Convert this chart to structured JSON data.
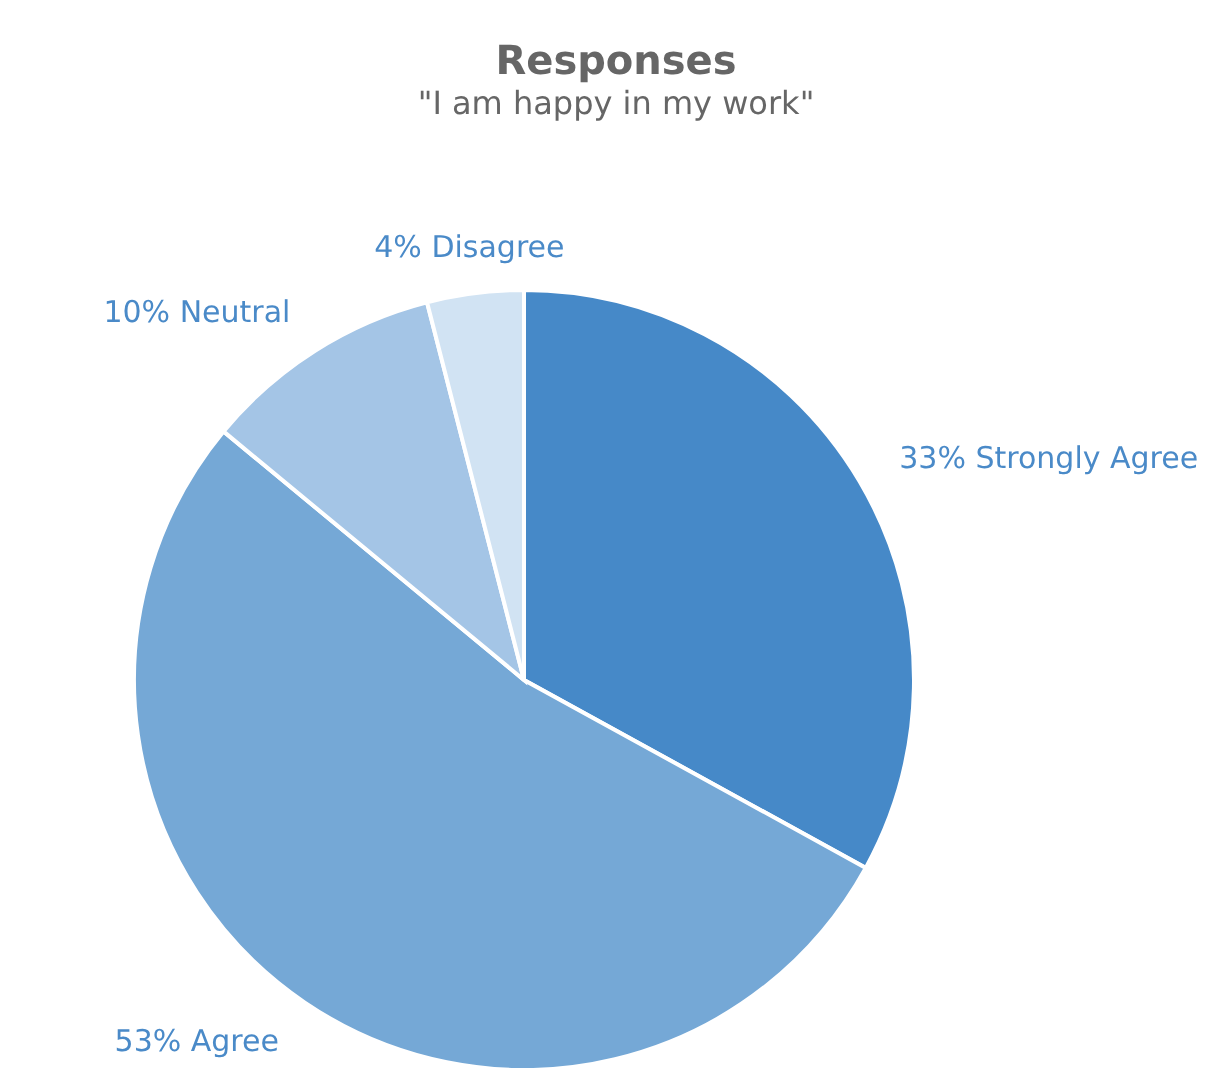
{
  "chart_data": {
    "type": "pie",
    "title": "Responses",
    "subtitle": "\"I am happy in my work\"",
    "categories": [
      "Strongly Agree",
      "Agree",
      "Neutral",
      "Disagree"
    ],
    "values": [
      33,
      53,
      10,
      4
    ],
    "value_labels": [
      "33%",
      "53%",
      "10%",
      "4%"
    ],
    "colors": [
      "#4689c8",
      "#75a8d6",
      "#a4c5e6",
      "#d1e3f3"
    ],
    "legend": false
  }
}
